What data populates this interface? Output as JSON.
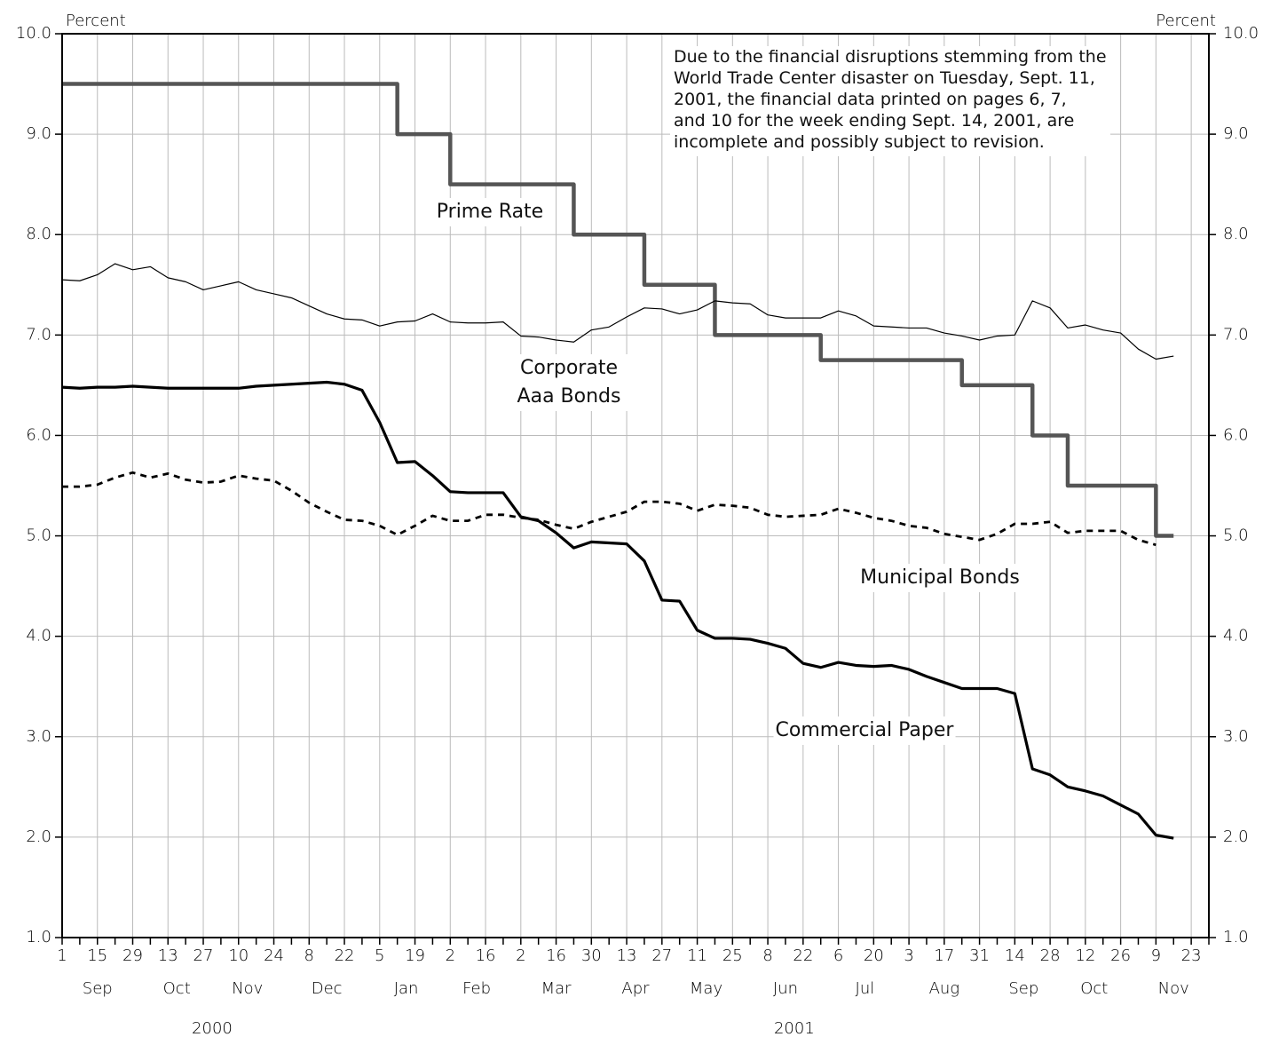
{
  "chart_data": {
    "type": "line",
    "y_label": "Percent",
    "y2_label": "Percent",
    "annotation_lines": [
      "Due to the financial disruptions stemming from the",
      "World Trade Center disaster on Tuesday, Sept. 11,",
      "2001, the financial data printed on pages 6, 7,",
      "and 10 for the week ending Sept. 14, 2001, are",
      "incomplete and possibly subject to revision."
    ],
    "x_axis": {
      "years": [
        {
          "label": "2000",
          "months": [
            {
              "label": "Sep",
              "days": [
                1,
                null,
                15,
                null,
                29
              ]
            },
            {
              "label": "Oct",
              "days": [
                null,
                13,
                null,
                27
              ]
            },
            {
              "label": "Nov",
              "days": [
                null,
                10,
                null,
                24
              ]
            },
            {
              "label": "Dec",
              "days": [
                null,
                8,
                null,
                22,
                null
              ]
            }
          ]
        },
        {
          "label": "2001",
          "months": [
            {
              "label": "Jan",
              "days": [
                5,
                null,
                19,
                null
              ]
            },
            {
              "label": "Feb",
              "days": [
                2,
                null,
                16,
                null
              ]
            },
            {
              "label": "Mar",
              "days": [
                2,
                null,
                16,
                null,
                30
              ]
            },
            {
              "label": "Apr",
              "days": [
                null,
                13,
                null,
                27
              ]
            },
            {
              "label": "May",
              "days": [
                null,
                11,
                null,
                25
              ]
            },
            {
              "label": "Jun",
              "days": [
                null,
                8,
                null,
                22,
                null
              ]
            },
            {
              "label": "Jul",
              "days": [
                6,
                null,
                20,
                null
              ]
            },
            {
              "label": "Aug",
              "days": [
                3,
                null,
                17,
                null,
                31
              ]
            },
            {
              "label": "Sep",
              "days": [
                null,
                14,
                null,
                28
              ]
            },
            {
              "label": "Oct",
              "days": [
                null,
                12,
                null,
                26
              ]
            },
            {
              "label": "Nov",
              "days": [
                null,
                9,
                null,
                23,
                null
              ]
            }
          ]
        }
      ]
    },
    "series": [
      {
        "name": "Prime Rate",
        "color": "#555555",
        "step": true,
        "dashed": false,
        "values": [
          9.5,
          9.5,
          9.5,
          9.5,
          9.5,
          9.5,
          9.5,
          9.5,
          9.5,
          9.5,
          9.5,
          9.5,
          9.5,
          9.5,
          9.5,
          9.5,
          9.5,
          9.5,
          9.5,
          9.0,
          9.0,
          9.0,
          8.5,
          8.5,
          8.5,
          8.5,
          8.5,
          8.5,
          8.5,
          8.0,
          8.0,
          8.0,
          8.0,
          7.5,
          7.5,
          7.5,
          7.5,
          7.0,
          7.0,
          7.0,
          7.0,
          7.0,
          7.0,
          6.75,
          6.75,
          6.75,
          6.75,
          6.75,
          6.75,
          6.75,
          6.75,
          6.5,
          6.5,
          6.5,
          6.5,
          6.0,
          6.0,
          5.5,
          5.5,
          5.5,
          5.5,
          5.5,
          5.0,
          5.0,
          null,
          null
        ]
      },
      {
        "name": "Corporate Aaa Bonds",
        "color": "#000000",
        "step": false,
        "dashed": false,
        "values": [
          7.55,
          7.54,
          7.6,
          7.71,
          7.65,
          7.68,
          7.57,
          7.53,
          7.45,
          7.49,
          7.53,
          7.45,
          7.41,
          7.37,
          7.29,
          7.21,
          7.16,
          7.15,
          7.09,
          7.13,
          7.14,
          7.21,
          7.13,
          7.12,
          7.12,
          7.13,
          6.99,
          6.98,
          6.95,
          6.93,
          7.05,
          7.08,
          7.18,
          7.27,
          7.26,
          7.21,
          7.25,
          7.34,
          7.32,
          7.31,
          7.2,
          7.17,
          7.17,
          7.17,
          7.24,
          7.19,
          7.09,
          7.08,
          7.07,
          7.07,
          7.02,
          6.99,
          6.95,
          6.99,
          7.0,
          7.34,
          7.27,
          7.07,
          7.1,
          7.05,
          7.02,
          6.86,
          6.76,
          6.79,
          null,
          null
        ]
      },
      {
        "name": "Municipal Bonds",
        "color": "#000000",
        "step": false,
        "dashed": true,
        "values": [
          5.49,
          5.49,
          5.51,
          5.58,
          5.63,
          5.58,
          5.62,
          5.56,
          5.53,
          5.54,
          5.6,
          5.57,
          5.55,
          5.45,
          5.33,
          5.24,
          5.16,
          5.15,
          5.1,
          5.01,
          5.1,
          5.2,
          5.15,
          5.15,
          5.21,
          5.21,
          5.18,
          5.16,
          5.11,
          5.07,
          5.14,
          5.19,
          5.24,
          5.34,
          5.34,
          5.32,
          5.25,
          5.31,
          5.3,
          5.28,
          5.21,
          5.19,
          5.2,
          5.21,
          5.27,
          5.23,
          5.18,
          5.15,
          5.1,
          5.08,
          5.02,
          4.99,
          4.96,
          5.02,
          5.12,
          5.12,
          5.14,
          5.03,
          5.05,
          5.05,
          5.05,
          4.96,
          4.91,
          null,
          null,
          null
        ]
      },
      {
        "name": "Commercial Paper",
        "color": "#000000",
        "step": false,
        "dashed": false,
        "values": [
          6.48,
          6.47,
          6.48,
          6.48,
          6.49,
          6.48,
          6.47,
          6.47,
          6.47,
          6.47,
          6.47,
          6.49,
          6.5,
          6.51,
          6.52,
          6.53,
          6.51,
          6.45,
          6.13,
          5.73,
          5.74,
          5.6,
          5.44,
          5.43,
          5.43,
          5.43,
          5.19,
          5.15,
          5.03,
          4.88,
          4.94,
          4.93,
          4.92,
          4.75,
          4.36,
          4.35,
          4.06,
          3.98,
          3.98,
          3.97,
          3.93,
          3.88,
          3.73,
          3.69,
          3.74,
          3.71,
          3.7,
          3.71,
          3.67,
          3.6,
          3.54,
          3.48,
          3.48,
          3.48,
          3.43,
          2.68,
          2.62,
          2.5,
          2.46,
          2.41,
          2.32,
          2.23,
          2.02,
          1.99,
          null,
          null
        ]
      }
    ],
    "ylim": [
      1,
      10
    ],
    "yticks": [
      {
        "value": 1,
        "label": "1.0"
      },
      {
        "value": 2,
        "label": "2.0"
      },
      {
        "value": 3,
        "label": "3.0"
      },
      {
        "value": 4,
        "label": "4.0"
      },
      {
        "value": 5,
        "label": "5.0"
      },
      {
        "value": 6,
        "label": "6.0"
      },
      {
        "value": 7,
        "label": "7.0"
      },
      {
        "value": 8,
        "label": "8.0"
      },
      {
        "value": 9,
        "label": "9.0"
      },
      {
        "value": 10,
        "label": "10.0"
      }
    ],
    "y2lim": [
      1,
      10
    ],
    "y2ticks": [
      {
        "value": 1,
        "label": "1.0"
      },
      {
        "value": 2,
        "label": "2.0"
      },
      {
        "value": 3,
        "label": "3.0"
      },
      {
        "value": 4,
        "label": "4.0"
      },
      {
        "value": 5,
        "label": "5.0"
      },
      {
        "value": 6,
        "label": "6.0"
      },
      {
        "value": 7,
        "label": "7.0"
      },
      {
        "value": 8,
        "label": "8.0"
      },
      {
        "value": 9,
        "label": "9.0"
      },
      {
        "value": 10,
        "label": "10.0"
      }
    ],
    "grid": true
  }
}
